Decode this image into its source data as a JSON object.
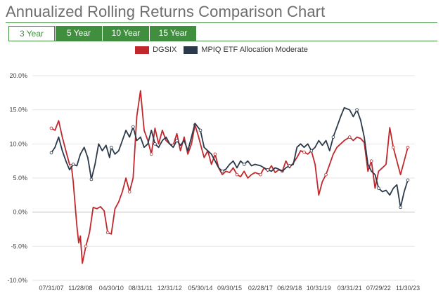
{
  "header": {
    "title": "Annualized Rolling Returns Comparison Chart"
  },
  "tabs": [
    {
      "label": "3 Year",
      "active": true
    },
    {
      "label": "5 Year",
      "active": false
    },
    {
      "label": "10 Year",
      "active": false
    },
    {
      "label": "15 Year",
      "active": false
    }
  ],
  "colors": {
    "accent": "#3f8f3f",
    "dgsix": "#c0282d",
    "mpiq": "#2b3a4a"
  },
  "chart_data": {
    "type": "line",
    "title": "",
    "xlabel": "",
    "ylabel": "",
    "ylim": [
      -10,
      20
    ],
    "xlim": [
      "2007-07-31",
      "2023-11-30"
    ],
    "y_ticks": [
      "20.0%",
      "15.0%",
      "10.0%",
      "5.0%",
      "0.0%",
      "-5.0%",
      "-10.0%"
    ],
    "x_ticks": [
      "07/31/07",
      "11/28/08",
      "04/30/10",
      "08/31/11",
      "12/31/12",
      "05/30/14",
      "09/30/15",
      "02/28/17",
      "06/29/18",
      "10/31/19",
      "03/31/21",
      "07/29/22",
      "11/30/23"
    ],
    "grid": "horizontal",
    "legend_position": "top",
    "series": [
      {
        "name": "DGSIX",
        "color": "#c0282d",
        "points": [
          [
            "2007-07-31",
            12.3
          ],
          [
            "2007-09-30",
            12.0
          ],
          [
            "2007-11-30",
            13.4
          ],
          [
            "2008-01-31",
            11.0
          ],
          [
            "2008-03-31",
            9.0
          ],
          [
            "2008-05-31",
            7.0
          ],
          [
            "2008-06-30",
            6.8
          ],
          [
            "2008-07-31",
            4.5
          ],
          [
            "2008-09-30",
            -2.0
          ],
          [
            "2008-10-31",
            -4.5
          ],
          [
            "2008-11-28",
            -3.5
          ],
          [
            "2008-12-31",
            -7.5
          ],
          [
            "2009-02-28",
            -5.0
          ],
          [
            "2009-04-30",
            -3.0
          ],
          [
            "2009-06-30",
            0.7
          ],
          [
            "2009-08-31",
            0.5
          ],
          [
            "2009-10-31",
            0.8
          ],
          [
            "2009-12-31",
            0.2
          ],
          [
            "2010-02-28",
            -3.0
          ],
          [
            "2010-04-30",
            -3.2
          ],
          [
            "2010-06-30",
            0.5
          ],
          [
            "2010-08-31",
            1.5
          ],
          [
            "2010-10-31",
            3.0
          ],
          [
            "2010-12-31",
            5.0
          ],
          [
            "2011-02-28",
            3.0
          ],
          [
            "2011-04-30",
            5.0
          ],
          [
            "2011-06-30",
            14.0
          ],
          [
            "2011-08-31",
            17.8
          ],
          [
            "2011-10-31",
            12.0
          ],
          [
            "2011-12-31",
            10.5
          ],
          [
            "2012-02-29",
            8.5
          ],
          [
            "2012-04-30",
            12.3
          ],
          [
            "2012-06-30",
            10.0
          ],
          [
            "2012-08-31",
            12.0
          ],
          [
            "2012-10-31",
            10.5
          ],
          [
            "2012-12-31",
            10.0
          ],
          [
            "2013-02-28",
            9.8
          ],
          [
            "2013-04-30",
            11.5
          ],
          [
            "2013-06-30",
            9.0
          ],
          [
            "2013-08-31",
            11.0
          ],
          [
            "2013-10-31",
            8.5
          ],
          [
            "2013-12-31",
            10.0
          ],
          [
            "2014-02-28",
            12.8
          ],
          [
            "2014-04-30",
            11.0
          ],
          [
            "2014-05-30",
            10.0
          ],
          [
            "2014-07-31",
            8.0
          ],
          [
            "2014-09-30",
            9.0
          ],
          [
            "2014-11-30",
            7.0
          ],
          [
            "2015-01-31",
            8.5
          ],
          [
            "2015-03-31",
            6.5
          ],
          [
            "2015-05-31",
            5.5
          ],
          [
            "2015-07-31",
            6.0
          ],
          [
            "2015-09-30",
            5.8
          ],
          [
            "2015-11-30",
            6.5
          ],
          [
            "2016-01-31",
            5.5
          ],
          [
            "2016-03-31",
            5.2
          ],
          [
            "2016-05-31",
            6.0
          ],
          [
            "2016-07-31",
            5.0
          ],
          [
            "2016-09-30",
            5.5
          ],
          [
            "2016-11-30",
            5.8
          ],
          [
            "2017-02-28",
            5.5
          ],
          [
            "2017-04-30",
            6.5
          ],
          [
            "2017-06-30",
            6.0
          ],
          [
            "2017-08-31",
            6.8
          ],
          [
            "2017-10-31",
            5.8
          ],
          [
            "2017-12-31",
            6.2
          ],
          [
            "2018-02-28",
            6.0
          ],
          [
            "2018-04-30",
            7.5
          ],
          [
            "2018-06-29",
            6.5
          ],
          [
            "2018-08-31",
            7.2
          ],
          [
            "2018-10-31",
            8.0
          ],
          [
            "2018-12-31",
            9.0
          ],
          [
            "2019-02-28",
            8.8
          ],
          [
            "2019-04-30",
            8.5
          ],
          [
            "2019-06-30",
            9.0
          ],
          [
            "2019-08-31",
            7.0
          ],
          [
            "2019-10-31",
            2.5
          ],
          [
            "2019-12-31",
            4.5
          ],
          [
            "2020-02-29",
            5.5
          ],
          [
            "2020-04-30",
            7.0
          ],
          [
            "2020-06-30",
            8.5
          ],
          [
            "2020-08-31",
            9.5
          ],
          [
            "2020-10-31",
            10.0
          ],
          [
            "2020-12-31",
            10.5
          ],
          [
            "2021-03-31",
            11.0
          ],
          [
            "2021-05-31",
            10.5
          ],
          [
            "2021-07-31",
            11.0
          ],
          [
            "2021-09-30",
            10.8
          ],
          [
            "2021-11-30",
            10.2
          ],
          [
            "2022-01-31",
            6.0
          ],
          [
            "2022-03-31",
            7.5
          ],
          [
            "2022-05-31",
            3.5
          ],
          [
            "2022-07-29",
            6.0
          ],
          [
            "2022-09-30",
            6.5
          ],
          [
            "2022-11-30",
            7.0
          ],
          [
            "2023-01-31",
            12.4
          ],
          [
            "2023-03-31",
            9.5
          ],
          [
            "2023-05-31",
            7.5
          ],
          [
            "2023-07-31",
            5.5
          ],
          [
            "2023-09-30",
            7.5
          ],
          [
            "2023-11-30",
            9.5
          ]
        ]
      },
      {
        "name": "MPIQ ETF Allocation Moderate",
        "color": "#2b3a4a",
        "points": [
          [
            "2007-07-31",
            8.7
          ],
          [
            "2007-09-30",
            9.5
          ],
          [
            "2007-11-30",
            11.0
          ],
          [
            "2008-01-31",
            9.0
          ],
          [
            "2008-03-31",
            7.5
          ],
          [
            "2008-05-31",
            6.2
          ],
          [
            "2008-07-31",
            7.0
          ],
          [
            "2008-09-30",
            6.8
          ],
          [
            "2008-11-28",
            8.5
          ],
          [
            "2009-01-31",
            9.5
          ],
          [
            "2009-03-31",
            8.0
          ],
          [
            "2009-04-30",
            6.5
          ],
          [
            "2009-05-31",
            4.8
          ],
          [
            "2009-07-31",
            7.0
          ],
          [
            "2009-09-30",
            10.0
          ],
          [
            "2009-11-30",
            9.0
          ],
          [
            "2010-01-31",
            9.8
          ],
          [
            "2010-03-31",
            8.0
          ],
          [
            "2010-04-30",
            9.5
          ],
          [
            "2010-06-30",
            8.5
          ],
          [
            "2010-08-31",
            9.0
          ],
          [
            "2010-10-31",
            10.5
          ],
          [
            "2010-12-31",
            12.0
          ],
          [
            "2011-02-28",
            11.0
          ],
          [
            "2011-04-30",
            12.5
          ],
          [
            "2011-06-30",
            10.5
          ],
          [
            "2011-08-31",
            11.0
          ],
          [
            "2011-10-31",
            9.5
          ],
          [
            "2011-12-31",
            10.0
          ],
          [
            "2012-02-29",
            12.0
          ],
          [
            "2012-04-30",
            10.0
          ],
          [
            "2012-06-30",
            9.5
          ],
          [
            "2012-08-31",
            10.5
          ],
          [
            "2012-10-31",
            11.0
          ],
          [
            "2012-12-31",
            10.0
          ],
          [
            "2013-02-28",
            9.5
          ],
          [
            "2013-04-30",
            10.5
          ],
          [
            "2013-06-30",
            9.8
          ],
          [
            "2013-08-31",
            10.5
          ],
          [
            "2013-10-31",
            9.0
          ],
          [
            "2013-12-31",
            11.0
          ],
          [
            "2014-02-28",
            13.0
          ],
          [
            "2014-05-30",
            12.0
          ],
          [
            "2014-07-31",
            9.5
          ],
          [
            "2014-09-30",
            9.0
          ],
          [
            "2014-11-30",
            8.5
          ],
          [
            "2015-01-31",
            7.5
          ],
          [
            "2015-03-31",
            6.5
          ],
          [
            "2015-05-31",
            6.0
          ],
          [
            "2015-07-31",
            6.3
          ],
          [
            "2015-09-30",
            7.0
          ],
          [
            "2015-11-30",
            7.5
          ],
          [
            "2016-01-31",
            6.5
          ],
          [
            "2016-03-31",
            7.5
          ],
          [
            "2016-05-31",
            7.0
          ],
          [
            "2016-07-31",
            7.5
          ],
          [
            "2016-09-30",
            6.8
          ],
          [
            "2016-11-30",
            7.0
          ],
          [
            "2017-02-28",
            6.8
          ],
          [
            "2017-04-30",
            6.5
          ],
          [
            "2017-06-30",
            6.2
          ],
          [
            "2017-08-31",
            6.0
          ],
          [
            "2017-10-31",
            6.5
          ],
          [
            "2017-12-31",
            6.3
          ],
          [
            "2018-02-28",
            6.0
          ],
          [
            "2018-04-30",
            6.5
          ],
          [
            "2018-06-29",
            6.8
          ],
          [
            "2018-08-31",
            7.0
          ],
          [
            "2018-10-31",
            9.5
          ],
          [
            "2018-12-31",
            10.0
          ],
          [
            "2019-02-28",
            9.5
          ],
          [
            "2019-04-30",
            10.0
          ],
          [
            "2019-06-30",
            9.0
          ],
          [
            "2019-08-31",
            9.5
          ],
          [
            "2019-10-31",
            10.5
          ],
          [
            "2019-12-31",
            9.8
          ],
          [
            "2020-02-29",
            10.5
          ],
          [
            "2020-04-30",
            9.0
          ],
          [
            "2020-06-30",
            11.0
          ],
          [
            "2020-08-31",
            12.5
          ],
          [
            "2020-10-31",
            14.0
          ],
          [
            "2020-12-31",
            15.3
          ],
          [
            "2021-03-31",
            15.0
          ],
          [
            "2021-05-31",
            14.0
          ],
          [
            "2021-07-31",
            15.0
          ],
          [
            "2021-09-30",
            13.5
          ],
          [
            "2021-11-30",
            11.0
          ],
          [
            "2022-01-31",
            7.0
          ],
          [
            "2022-03-31",
            6.0
          ],
          [
            "2022-05-31",
            5.5
          ],
          [
            "2022-07-29",
            3.5
          ],
          [
            "2022-09-30",
            3.0
          ],
          [
            "2022-11-30",
            3.2
          ],
          [
            "2023-01-31",
            2.5
          ],
          [
            "2023-03-31",
            3.5
          ],
          [
            "2023-05-31",
            4.0
          ],
          [
            "2023-07-31",
            0.7
          ],
          [
            "2023-09-30",
            3.0
          ],
          [
            "2023-11-30",
            4.7
          ]
        ]
      }
    ]
  }
}
